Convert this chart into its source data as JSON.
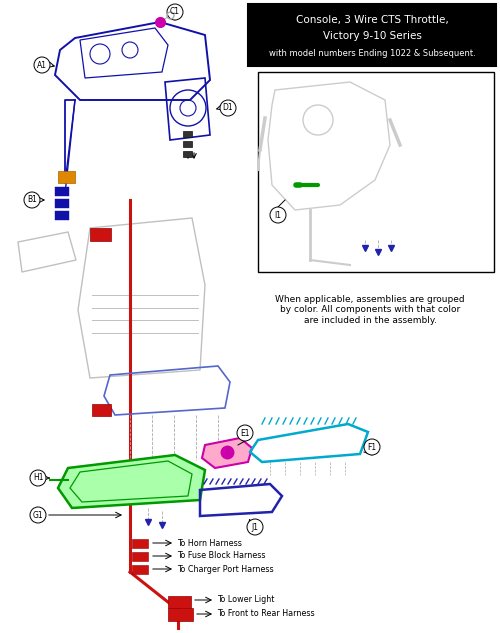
{
  "title_line1": "Console, 3 Wire CTS Throttle,",
  "title_line2": "Victory 9-10 Series",
  "title_line3": "with model numbers Ending 1022 & Subsequent.",
  "bg_color": "#ffffff",
  "title_bg": "#000000",
  "title_fg": "#ffffff",
  "note_text": "When applicable, assemblies are grouped\nby color. All components with that color\nare included in the assembly.",
  "red": "#cc1111",
  "blue": "#2222aa",
  "dark_blue": "#1111aa",
  "orange": "#dd8800",
  "green": "#009900",
  "magenta": "#cc00aa",
  "cyan": "#00aacc",
  "purple_blue": "#3333bb",
  "gray": "#999999",
  "light_gray": "#cccccc",
  "mid_gray": "#aaaaaa"
}
